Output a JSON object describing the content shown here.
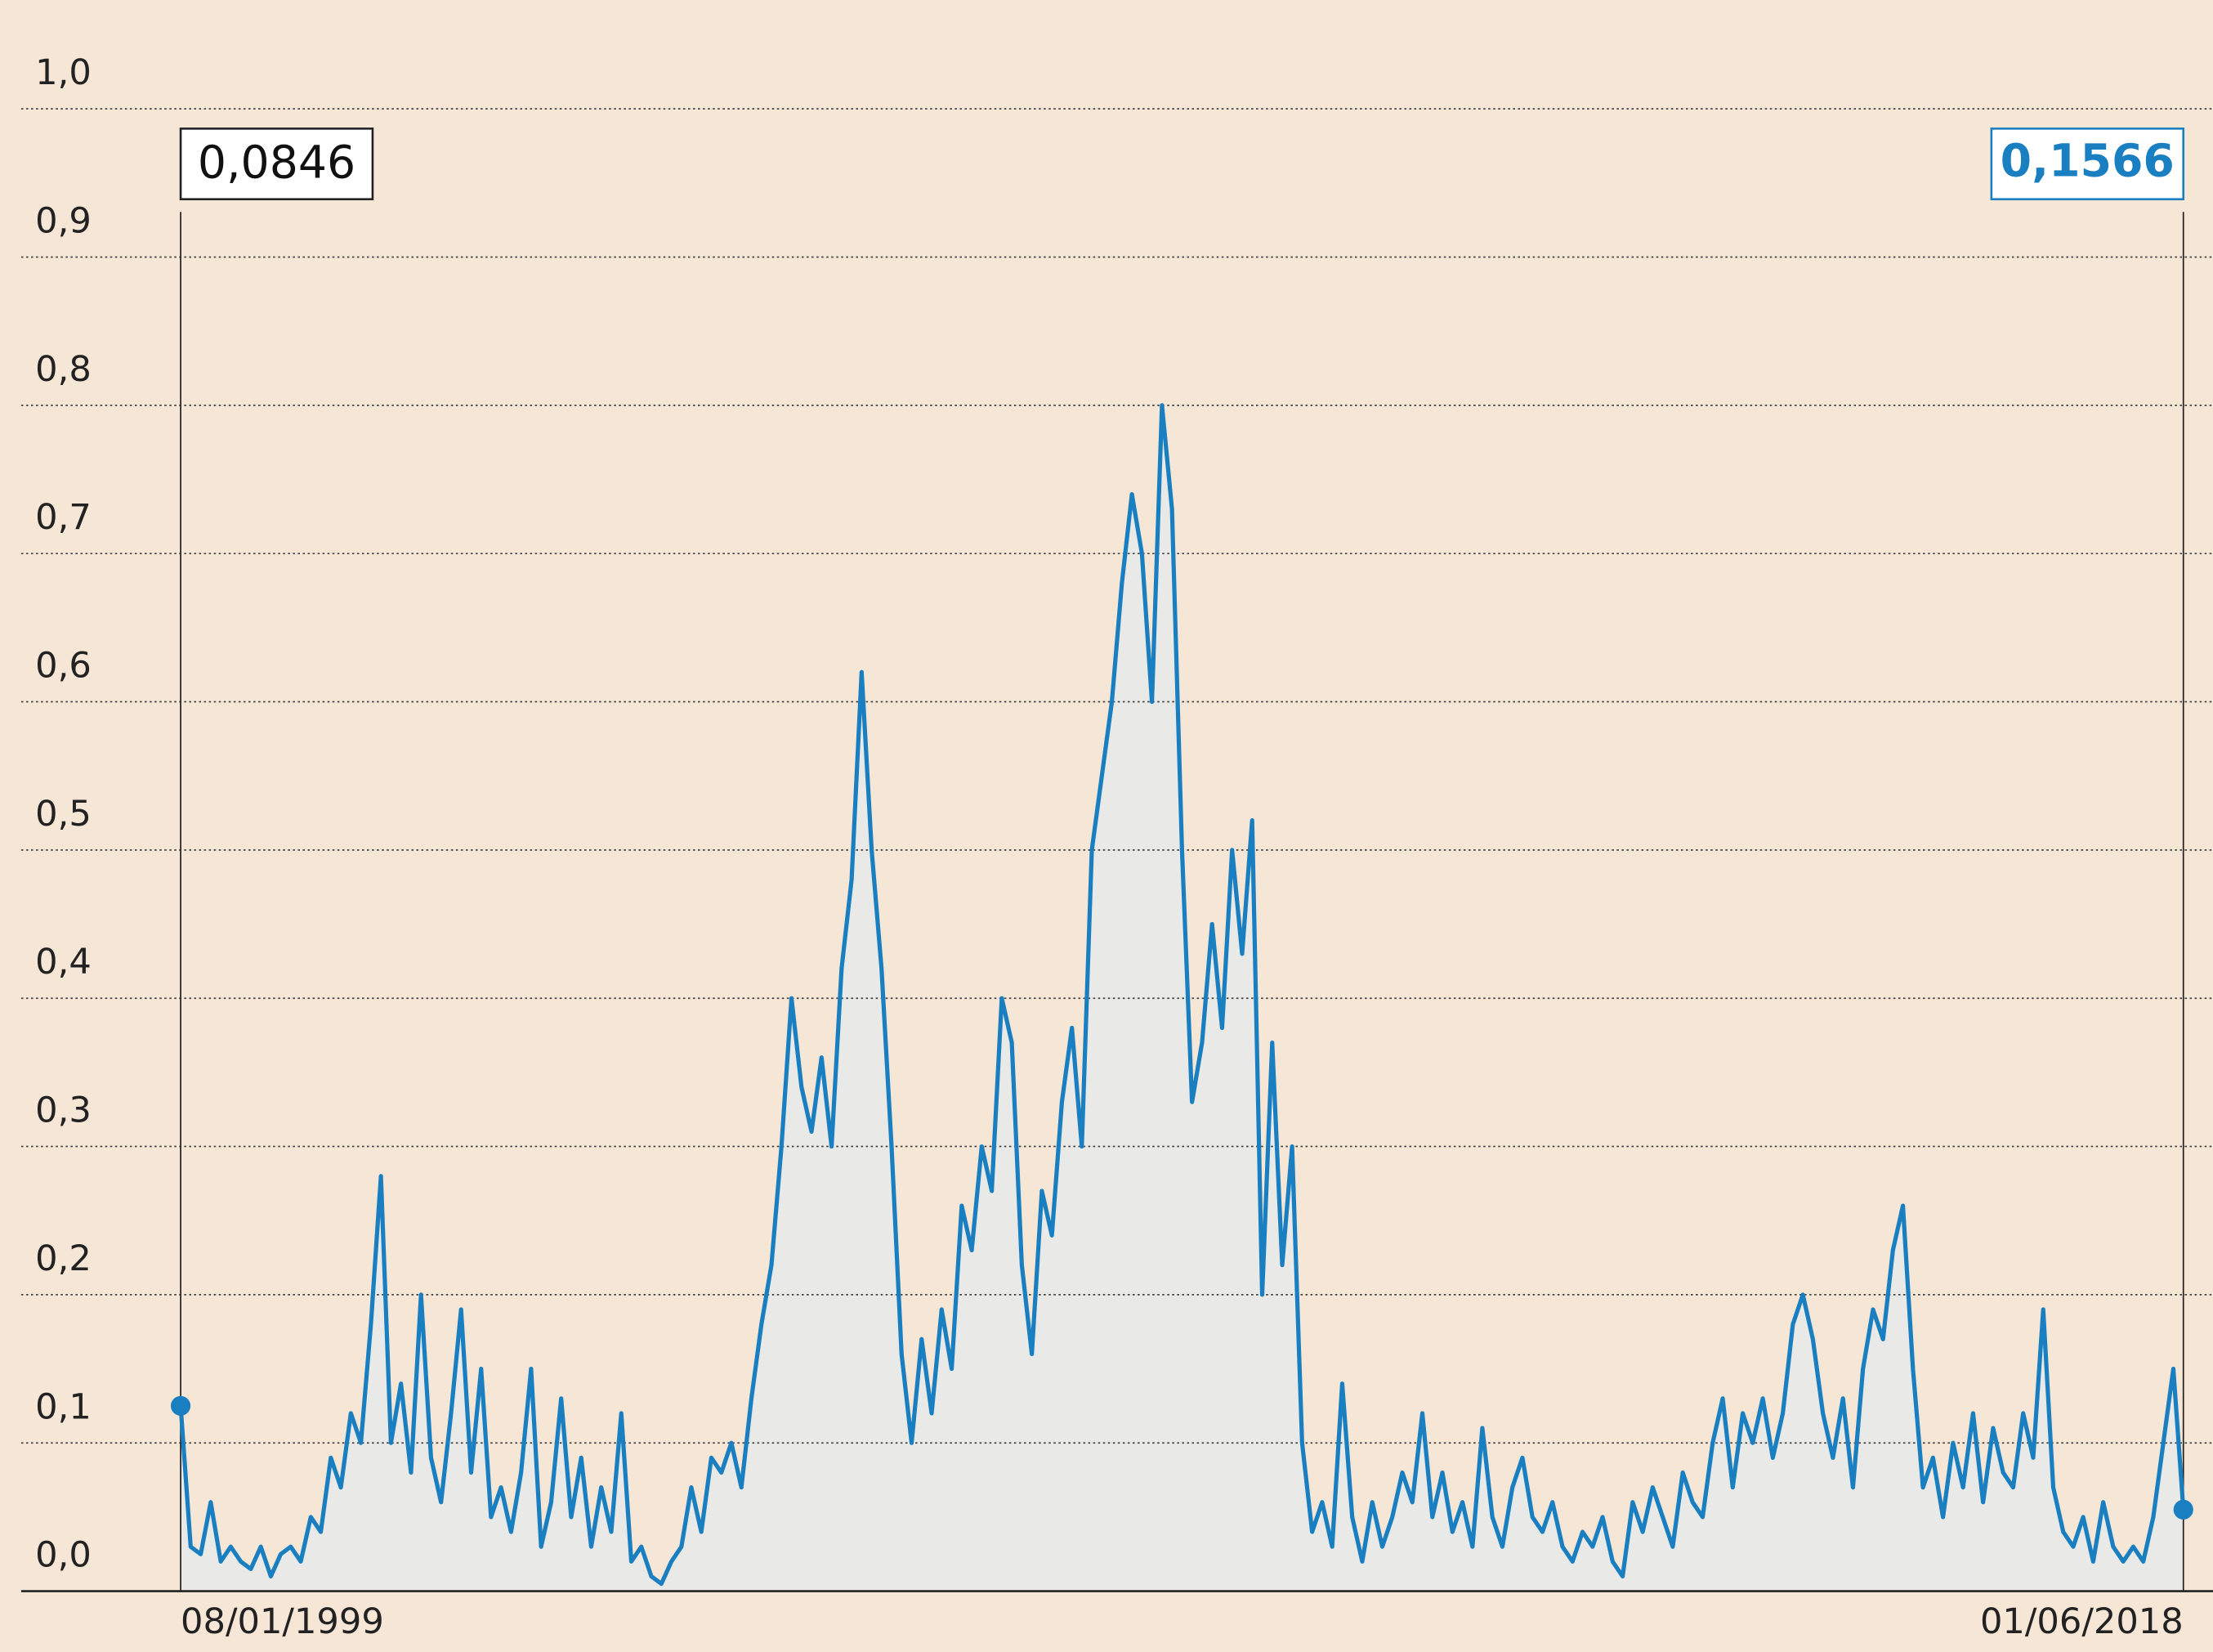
{
  "chart_data": {
    "type": "line",
    "annotations": [
      "0,0846",
      "0,1566"
    ],
    "categories": [
      "08/01/1999",
      null,
      null,
      null,
      null,
      null,
      null,
      null,
      null,
      null,
      null,
      null,
      null,
      null,
      null,
      null,
      null,
      null,
      null,
      null,
      null,
      null,
      null,
      null,
      null,
      null,
      null,
      null,
      null,
      null,
      null,
      null,
      null,
      null,
      null,
      null,
      null,
      null,
      null,
      null,
      null,
      null,
      null,
      null,
      null,
      null,
      null,
      null,
      null,
      null,
      null,
      null,
      null,
      null,
      null,
      null,
      null,
      null,
      null,
      null,
      null,
      null,
      null,
      null,
      null,
      null,
      null,
      null,
      null,
      null,
      null,
      null,
      null,
      null,
      null,
      null,
      null,
      null,
      null,
      null,
      null,
      null,
      null,
      null,
      null,
      null,
      null,
      null,
      null,
      null,
      null,
      null,
      null,
      null,
      null,
      null,
      null,
      null,
      null,
      null,
      null,
      null,
      null,
      null,
      null,
      null,
      null,
      null,
      null,
      null,
      null,
      null,
      null,
      null,
      null,
      null,
      null,
      null,
      null,
      null,
      null,
      null,
      null,
      null,
      null,
      null,
      null,
      null,
      null,
      null,
      null,
      null,
      null,
      null,
      null,
      null,
      null,
      null,
      null,
      null,
      null,
      null,
      null,
      null,
      null,
      null,
      null,
      null,
      null,
      null,
      null,
      null,
      null,
      null,
      null,
      null,
      null,
      null,
      null,
      null,
      null,
      null,
      null,
      null,
      null,
      null,
      null,
      null,
      null,
      null,
      null,
      null,
      null,
      null,
      null,
      null,
      null,
      null,
      null,
      null,
      null,
      null,
      null,
      null,
      null,
      null,
      null,
      null,
      null,
      null,
      null,
      null,
      null,
      null,
      null,
      null,
      null,
      null,
      null,
      null,
      "01/06/2018"
    ],
    "series": [
      {
        "color": "#1a7fc1",
        "area_color": "#e9e9e8",
        "values": [
          0.125,
          0.03,
          0.025,
          0.06,
          0.02,
          0.03,
          0.02,
          0.015,
          0.03,
          0.01,
          0.025,
          0.03,
          0.02,
          0.05,
          0.04,
          0.09,
          0.07,
          0.12,
          0.1,
          0.18,
          0.28,
          0.1,
          0.14,
          0.08,
          0.2,
          0.09,
          0.06,
          0.12,
          0.19,
          0.08,
          0.15,
          0.05,
          0.07,
          0.04,
          0.08,
          0.15,
          0.03,
          0.06,
          0.13,
          0.05,
          0.09,
          0.03,
          0.07,
          0.04,
          0.12,
          0.02,
          0.03,
          0.01,
          0.005,
          0.02,
          0.03,
          0.07,
          0.04,
          0.09,
          0.08,
          0.1,
          0.07,
          0.13,
          0.18,
          0.22,
          0.3,
          0.4,
          0.34,
          0.31,
          0.36,
          0.3,
          0.42,
          0.48,
          0.62,
          0.5,
          0.42,
          0.3,
          0.16,
          0.1,
          0.17,
          0.12,
          0.19,
          0.15,
          0.26,
          0.23,
          0.3,
          0.27,
          0.4,
          0.37,
          0.22,
          0.16,
          0.27,
          0.24,
          0.33,
          0.38,
          0.3,
          0.5,
          0.55,
          0.6,
          0.68,
          0.74,
          0.7,
          0.6,
          0.8,
          0.73,
          0.5,
          0.33,
          0.37,
          0.45,
          0.38,
          0.5,
          0.43,
          0.52,
          0.2,
          0.37,
          0.22,
          0.3,
          0.1,
          0.04,
          0.06,
          0.03,
          0.14,
          0.05,
          0.02,
          0.06,
          0.03,
          0.05,
          0.08,
          0.06,
          0.12,
          0.05,
          0.08,
          0.04,
          0.06,
          0.03,
          0.11,
          0.05,
          0.03,
          0.07,
          0.09,
          0.05,
          0.04,
          0.06,
          0.03,
          0.02,
          0.04,
          0.03,
          0.05,
          0.02,
          0.01,
          0.06,
          0.04,
          0.07,
          0.05,
          0.03,
          0.08,
          0.06,
          0.05,
          0.1,
          0.13,
          0.07,
          0.12,
          0.1,
          0.13,
          0.09,
          0.12,
          0.18,
          0.2,
          0.17,
          0.12,
          0.09,
          0.13,
          0.07,
          0.15,
          0.19,
          0.17,
          0.23,
          0.26,
          0.15,
          0.07,
          0.09,
          0.05,
          0.1,
          0.07,
          0.12,
          0.06,
          0.11,
          0.08,
          0.07,
          0.12,
          0.09,
          0.19,
          0.07,
          0.04,
          0.03,
          0.05,
          0.02,
          0.06,
          0.03,
          0.02,
          0.03,
          0.02,
          0.05,
          0.1,
          0.15,
          0.055
        ]
      }
    ],
    "ylim": [
      0,
      1
    ],
    "yticks": [
      {
        "value": 0,
        "label": "0,0"
      },
      {
        "value": 0.1,
        "label": "0,1"
      },
      {
        "value": 0.2,
        "label": "0,2"
      },
      {
        "value": 0.3,
        "label": "0,3"
      },
      {
        "value": 0.4,
        "label": "0,4"
      },
      {
        "value": 0.5,
        "label": "0,5"
      },
      {
        "value": 0.6,
        "label": "0,6"
      },
      {
        "value": 0.7,
        "label": "0,7"
      },
      {
        "value": 0.8,
        "label": "0,8"
      },
      {
        "value": 0.9,
        "label": "0,9"
      },
      {
        "value": 1,
        "label": "1,0"
      }
    ],
    "grid": true
  }
}
